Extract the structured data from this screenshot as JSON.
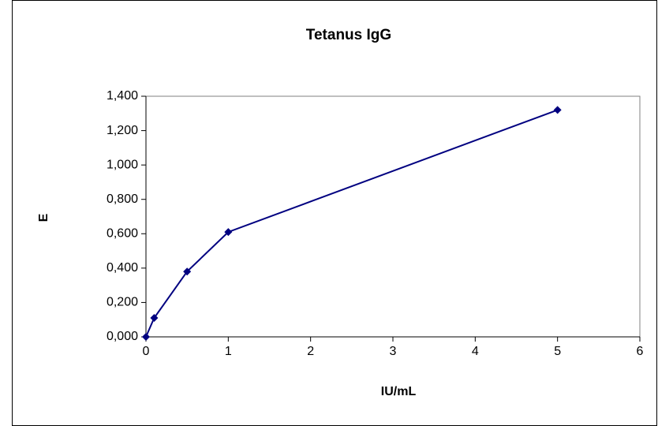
{
  "chart_data": {
    "type": "line",
    "title": "Tetanus IgG",
    "x_label": "IU/mL",
    "y_label": "E",
    "x": [
      0,
      0.1,
      0.5,
      1,
      5
    ],
    "series": [
      {
        "color": "#000080",
        "values": [
          0,
          0.11,
          0.38,
          0.61,
          1.32
        ]
      }
    ],
    "xlim": [
      0,
      6
    ],
    "xticks": [
      0,
      1,
      2,
      3,
      4,
      5,
      6
    ],
    "ylim": [
      0,
      1.4
    ],
    "yticks": [
      {
        "value": 0,
        "label": "0,000"
      },
      {
        "value": 0.2,
        "label": "0,200"
      },
      {
        "value": 0.4,
        "label": "0,400"
      },
      {
        "value": 0.6,
        "label": "0,600"
      },
      {
        "value": 0.8,
        "label": "0,800"
      },
      {
        "value": 1.0,
        "label": "1,000"
      },
      {
        "value": 1.2,
        "label": "1,200"
      },
      {
        "value": 1.4,
        "label": "1,400"
      }
    ]
  }
}
